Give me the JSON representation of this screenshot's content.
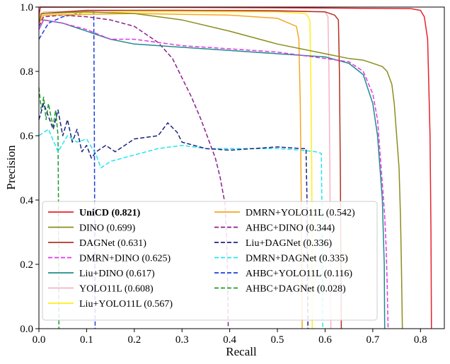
{
  "chart_data": {
    "type": "line",
    "title": "",
    "xlabel": "Recall",
    "ylabel": "Precision",
    "xlim": [
      0.0,
      0.85
    ],
    "ylim": [
      0.0,
      1.0
    ],
    "xticks": [
      "0.0",
      "0.1",
      "0.2",
      "0.3",
      "0.4",
      "0.5",
      "0.6",
      "0.7",
      "0.8"
    ],
    "yticks": [
      "0.0",
      "0.2",
      "0.4",
      "0.6",
      "0.8",
      "1.0"
    ],
    "xtick_values": [
      0.0,
      0.1,
      0.2,
      0.3,
      0.4,
      0.5,
      0.6,
      0.7,
      0.8
    ],
    "ytick_values": [
      0.0,
      0.2,
      0.4,
      0.6,
      0.8,
      1.0
    ],
    "legend_position": "lower-left",
    "series": [
      {
        "name": "UniCD (0.821)",
        "bold": true,
        "color": "#e8202a",
        "dash": "solid",
        "points": [
          [
            0.0,
            0.97
          ],
          [
            0.003,
            1.0
          ],
          [
            0.3,
            0.999
          ],
          [
            0.6,
            0.997
          ],
          [
            0.78,
            0.995
          ],
          [
            0.8,
            0.99
          ],
          [
            0.808,
            0.97
          ],
          [
            0.815,
            0.9
          ],
          [
            0.82,
            0.6
          ],
          [
            0.822,
            0.3
          ],
          [
            0.823,
            0.0
          ]
        ]
      },
      {
        "name": "DINO (0.699)",
        "bold": false,
        "color": "#8d8c1e",
        "dash": "solid",
        "points": [
          [
            0.0,
            0.96
          ],
          [
            0.005,
            0.98
          ],
          [
            0.1,
            0.985
          ],
          [
            0.2,
            0.98
          ],
          [
            0.3,
            0.96
          ],
          [
            0.4,
            0.925
          ],
          [
            0.5,
            0.885
          ],
          [
            0.6,
            0.855
          ],
          [
            0.65,
            0.84
          ],
          [
            0.68,
            0.835
          ],
          [
            0.7,
            0.825
          ],
          [
            0.72,
            0.815
          ],
          [
            0.73,
            0.8
          ],
          [
            0.74,
            0.76
          ],
          [
            0.745,
            0.7
          ],
          [
            0.75,
            0.6
          ],
          [
            0.755,
            0.5
          ],
          [
            0.758,
            0.35
          ],
          [
            0.76,
            0.2
          ],
          [
            0.762,
            0.0
          ]
        ]
      },
      {
        "name": "DAGNet (0.631)",
        "bold": false,
        "color": "#b23024",
        "dash": "solid",
        "points": [
          [
            0.0,
            0.95
          ],
          [
            0.005,
            0.98
          ],
          [
            0.1,
            0.99
          ],
          [
            0.3,
            0.99
          ],
          [
            0.5,
            0.988
          ],
          [
            0.6,
            0.985
          ],
          [
            0.62,
            0.975
          ],
          [
            0.628,
            0.96
          ],
          [
            0.63,
            0.8
          ],
          [
            0.632,
            0.5
          ],
          [
            0.634,
            0.0
          ]
        ]
      },
      {
        "name": "DMRN+DINO (0.625)",
        "bold": false,
        "color": "#e535e8",
        "dash": "dashed",
        "points": [
          [
            0.0,
            0.93
          ],
          [
            0.01,
            0.96
          ],
          [
            0.05,
            0.95
          ],
          [
            0.1,
            0.93
          ],
          [
            0.15,
            0.9
          ],
          [
            0.2,
            0.9
          ],
          [
            0.3,
            0.88
          ],
          [
            0.4,
            0.87
          ],
          [
            0.5,
            0.86
          ],
          [
            0.6,
            0.84
          ],
          [
            0.65,
            0.83
          ],
          [
            0.68,
            0.8
          ],
          [
            0.7,
            0.73
          ],
          [
            0.71,
            0.65
          ],
          [
            0.715,
            0.55
          ],
          [
            0.72,
            0.45
          ],
          [
            0.725,
            0.35
          ],
          [
            0.728,
            0.25
          ],
          [
            0.73,
            0.15
          ],
          [
            0.732,
            0.0
          ]
        ]
      },
      {
        "name": "Liu+DINO (0.617)",
        "bold": false,
        "color": "#1e8d8a",
        "dash": "solid",
        "points": [
          [
            0.0,
            0.93
          ],
          [
            0.01,
            0.96
          ],
          [
            0.05,
            0.95
          ],
          [
            0.1,
            0.925
          ],
          [
            0.15,
            0.9
          ],
          [
            0.2,
            0.885
          ],
          [
            0.3,
            0.875
          ],
          [
            0.4,
            0.865
          ],
          [
            0.5,
            0.855
          ],
          [
            0.6,
            0.845
          ],
          [
            0.65,
            0.825
          ],
          [
            0.68,
            0.79
          ],
          [
            0.7,
            0.7
          ],
          [
            0.71,
            0.6
          ],
          [
            0.715,
            0.5
          ],
          [
            0.72,
            0.4
          ],
          [
            0.722,
            0.3
          ],
          [
            0.724,
            0.2
          ],
          [
            0.725,
            0.0
          ]
        ]
      },
      {
        "name": "YOLO11L (0.608)",
        "bold": false,
        "color": "#f5b3c2",
        "dash": "solid",
        "points": [
          [
            0.0,
            0.96
          ],
          [
            0.01,
            0.985
          ],
          [
            0.2,
            0.99
          ],
          [
            0.5,
            0.99
          ],
          [
            0.6,
            0.985
          ],
          [
            0.606,
            0.97
          ],
          [
            0.608,
            0.8
          ],
          [
            0.61,
            0.5
          ],
          [
            0.612,
            0.0
          ]
        ]
      },
      {
        "name": "Liu+YOLO11L (0.567)",
        "bold": false,
        "color": "#ffee1a",
        "dash": "solid",
        "points": [
          [
            0.0,
            0.96
          ],
          [
            0.01,
            0.98
          ],
          [
            0.2,
            0.985
          ],
          [
            0.5,
            0.985
          ],
          [
            0.56,
            0.98
          ],
          [
            0.568,
            0.96
          ],
          [
            0.57,
            0.8
          ],
          [
            0.572,
            0.5
          ],
          [
            0.573,
            0.0
          ]
        ]
      },
      {
        "name": "DMRN+YOLO11L (0.542)",
        "bold": false,
        "color": "#f5a623",
        "dash": "solid",
        "points": [
          [
            0.0,
            0.95
          ],
          [
            0.01,
            0.975
          ],
          [
            0.2,
            0.98
          ],
          [
            0.4,
            0.975
          ],
          [
            0.5,
            0.965
          ],
          [
            0.54,
            0.94
          ],
          [
            0.545,
            0.9
          ],
          [
            0.548,
            0.7
          ],
          [
            0.55,
            0.4
          ],
          [
            0.552,
            0.0
          ]
        ]
      },
      {
        "name": "AHBC+DINO (0.344)",
        "bold": false,
        "color": "#8b1f8f",
        "dash": "dashed",
        "points": [
          [
            0.0,
            0.94
          ],
          [
            0.01,
            0.97
          ],
          [
            0.05,
            0.975
          ],
          [
            0.1,
            0.97
          ],
          [
            0.15,
            0.96
          ],
          [
            0.2,
            0.94
          ],
          [
            0.25,
            0.89
          ],
          [
            0.28,
            0.84
          ],
          [
            0.3,
            0.78
          ],
          [
            0.32,
            0.72
          ],
          [
            0.34,
            0.65
          ],
          [
            0.36,
            0.57
          ],
          [
            0.37,
            0.53
          ],
          [
            0.38,
            0.47
          ],
          [
            0.385,
            0.43
          ],
          [
            0.39,
            0.39
          ],
          [
            0.393,
            0.3
          ],
          [
            0.395,
            0.2
          ],
          [
            0.396,
            0.1
          ],
          [
            0.397,
            0.0
          ]
        ]
      },
      {
        "name": "Liu+DAGNet (0.336)",
        "bold": false,
        "color": "#1a237e",
        "dash": "dashed",
        "points": [
          [
            0.0,
            0.65
          ],
          [
            0.01,
            0.7
          ],
          [
            0.02,
            0.66
          ],
          [
            0.03,
            0.62
          ],
          [
            0.04,
            0.68
          ],
          [
            0.05,
            0.6
          ],
          [
            0.06,
            0.65
          ],
          [
            0.07,
            0.58
          ],
          [
            0.08,
            0.62
          ],
          [
            0.09,
            0.55
          ],
          [
            0.1,
            0.57
          ],
          [
            0.11,
            0.53
          ],
          [
            0.12,
            0.55
          ],
          [
            0.14,
            0.57
          ],
          [
            0.16,
            0.55
          ],
          [
            0.2,
            0.59
          ],
          [
            0.25,
            0.6
          ],
          [
            0.27,
            0.64
          ],
          [
            0.29,
            0.61
          ],
          [
            0.3,
            0.58
          ],
          [
            0.35,
            0.56
          ],
          [
            0.4,
            0.555
          ],
          [
            0.45,
            0.56
          ],
          [
            0.5,
            0.565
          ],
          [
            0.55,
            0.56
          ],
          [
            0.56,
            0.56
          ],
          [
            0.562,
            0.4
          ],
          [
            0.563,
            0.2
          ],
          [
            0.564,
            0.0
          ]
        ]
      },
      {
        "name": "DMRN+DAGNet (0.335)",
        "bold": false,
        "color": "#22e6ee",
        "dash": "dashed",
        "points": [
          [
            0.0,
            0.6
          ],
          [
            0.02,
            0.62
          ],
          [
            0.04,
            0.55
          ],
          [
            0.06,
            0.6
          ],
          [
            0.08,
            0.58
          ],
          [
            0.1,
            0.59
          ],
          [
            0.12,
            0.54
          ],
          [
            0.13,
            0.5
          ],
          [
            0.15,
            0.52
          ],
          [
            0.2,
            0.54
          ],
          [
            0.25,
            0.56
          ],
          [
            0.3,
            0.57
          ],
          [
            0.35,
            0.56
          ],
          [
            0.4,
            0.56
          ],
          [
            0.45,
            0.56
          ],
          [
            0.5,
            0.56
          ],
          [
            0.55,
            0.555
          ],
          [
            0.58,
            0.55
          ],
          [
            0.592,
            0.545
          ],
          [
            0.594,
            0.3
          ],
          [
            0.595,
            0.0
          ]
        ]
      },
      {
        "name": "AHBC+YOLO11L (0.116)",
        "bold": false,
        "color": "#1b3ee0",
        "dash": "dashed",
        "points": [
          [
            0.0,
            0.9
          ],
          [
            0.02,
            0.95
          ],
          [
            0.05,
            0.97
          ],
          [
            0.1,
            0.985
          ],
          [
            0.115,
            0.985
          ],
          [
            0.116,
            0.7
          ],
          [
            0.117,
            0.3
          ],
          [
            0.118,
            0.0
          ]
        ]
      },
      {
        "name": "AHBC+DAGNet (0.028)",
        "bold": false,
        "color": "#1f9a2e",
        "dash": "dashed",
        "points": [
          [
            0.0,
            0.75
          ],
          [
            0.005,
            0.68
          ],
          [
            0.01,
            0.72
          ],
          [
            0.015,
            0.65
          ],
          [
            0.02,
            0.7
          ],
          [
            0.025,
            0.66
          ],
          [
            0.03,
            0.63
          ],
          [
            0.035,
            0.68
          ],
          [
            0.04,
            0.6
          ],
          [
            0.041,
            0.4
          ],
          [
            0.042,
            0.0
          ]
        ]
      }
    ]
  }
}
